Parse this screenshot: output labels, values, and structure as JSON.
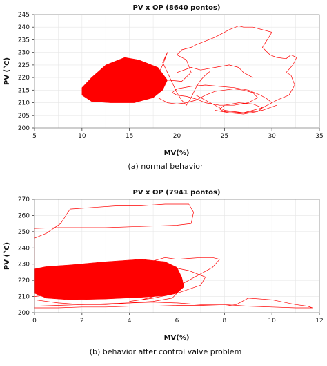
{
  "chart_data": [
    {
      "type": "scatter",
      "title": "PV x OP (8640 pontos)",
      "xlabel": "MV(%)",
      "ylabel": "PV (°C)",
      "caption": "(a) normal behavior",
      "xlim": [
        5,
        35
      ],
      "ylim": [
        200,
        245
      ],
      "xticks": [
        5,
        10,
        15,
        20,
        25,
        30,
        35
      ],
      "yticks": [
        200,
        205,
        210,
        215,
        220,
        225,
        230,
        235,
        240,
        245
      ],
      "grid": true,
      "color": "#ff0000",
      "dense_region": [
        [
          10,
          213
        ],
        [
          11,
          210.5
        ],
        [
          13,
          210
        ],
        [
          15.5,
          210
        ],
        [
          17.5,
          212
        ],
        [
          18.5,
          215
        ],
        [
          19,
          219
        ],
        [
          18,
          224
        ],
        [
          16,
          227
        ],
        [
          14.5,
          228
        ],
        [
          12.5,
          225
        ],
        [
          11,
          220
        ],
        [
          10,
          216
        ]
      ],
      "series": [
        {
          "x": [
            19,
            20.5,
            21.5,
            21,
            20,
            20.5,
            21.5,
            22,
            24,
            25.5,
            26.5,
            27,
            28,
            29,
            30,
            29.5,
            29,
            29.8,
            30.5,
            31.5,
            32,
            32.6,
            32.2,
            31.5,
            32,
            32.4,
            31.8,
            30.5,
            29,
            27,
            25,
            24,
            23.5,
            22
          ],
          "y": [
            219,
            218.5,
            222,
            227,
            229,
            231,
            232,
            233,
            236,
            239,
            240.5,
            240,
            240,
            239,
            238,
            235,
            232,
            229,
            228,
            227.5,
            229,
            228,
            225,
            222,
            221,
            217,
            213,
            211,
            208,
            206,
            207,
            209,
            210,
            213
          ]
        },
        {
          "x": [
            18,
            19,
            20,
            21,
            22,
            23,
            24,
            25,
            26,
            27,
            28,
            28.5,
            27.5,
            26,
            24.5,
            23,
            22,
            21,
            20,
            19.5,
            20,
            21.5,
            23,
            24.5,
            26,
            27.5,
            28.8,
            29.5,
            30
          ],
          "y": [
            212,
            210,
            209.5,
            210,
            211,
            213,
            214.5,
            215,
            215.5,
            215,
            214,
            212,
            210,
            209,
            209,
            210,
            211.5,
            212.5,
            213,
            214,
            215.5,
            216.5,
            217,
            216.5,
            216,
            215,
            213,
            211.5,
            210
          ]
        },
        {
          "x": [
            24,
            25.5,
            27,
            28.5,
            29,
            28,
            26.5,
            25,
            24.5,
            25,
            27,
            29,
            30.5
          ],
          "y": [
            207,
            206,
            205.5,
            206.5,
            208,
            209.5,
            210,
            209,
            207.5,
            206.5,
            206,
            207,
            209
          ]
        },
        {
          "x": [
            16,
            17,
            18,
            18.5,
            19,
            18.5,
            19,
            19.5,
            20,
            20.5,
            21,
            21.5,
            22,
            22.5,
            23,
            23.5
          ],
          "y": [
            213,
            216,
            221,
            225,
            230,
            226,
            222,
            218,
            214,
            211,
            209,
            212,
            216,
            219,
            221,
            222.5
          ]
        },
        {
          "x": [
            20,
            21.5,
            22.5,
            24,
            25.5,
            26.5,
            27,
            28
          ],
          "y": [
            222,
            224,
            223,
            224,
            225,
            224,
            222,
            220
          ]
        }
      ]
    },
    {
      "type": "scatter",
      "title": "PV x OP (7941 pontos)",
      "xlabel": "MV(%)",
      "ylabel": "PV (°C)",
      "caption": "(b) behavior after control valve problem",
      "xlim": [
        0,
        12
      ],
      "ylim": [
        200,
        270
      ],
      "xticks": [
        0,
        2,
        4,
        6,
        8,
        10,
        12
      ],
      "yticks": [
        200,
        210,
        220,
        230,
        240,
        250,
        260,
        270
      ],
      "grid": true,
      "color": "#ff0000",
      "dense_region": [
        [
          0,
          212
        ],
        [
          0.5,
          209
        ],
        [
          1.5,
          208
        ],
        [
          3,
          208.5
        ],
        [
          4.5,
          209.5
        ],
        [
          5.5,
          210.5
        ],
        [
          6,
          212
        ],
        [
          6.3,
          216
        ],
        [
          6.2,
          222
        ],
        [
          6,
          228
        ],
        [
          5.5,
          231.5
        ],
        [
          4.5,
          233
        ],
        [
          3,
          231.5
        ],
        [
          1.5,
          229.5
        ],
        [
          0.5,
          228.5
        ],
        [
          0,
          227
        ]
      ],
      "series": [
        {
          "x": [
            0,
            0,
            1,
            2,
            3,
            4,
            5,
            6,
            6.6,
            6.7,
            6.5,
            5.5,
            4.5,
            3.5,
            2.5,
            1.5,
            1.1,
            0.5,
            0,
            0
          ],
          "y": [
            203,
            252,
            252.5,
            252.5,
            252.5,
            253,
            253.5,
            254,
            255,
            262,
            267,
            267,
            266,
            266,
            265,
            264,
            255,
            249,
            246,
            228
          ]
        },
        {
          "x": [
            0,
            1,
            2,
            3,
            4,
            5,
            6,
            7,
            8,
            8.5,
            9,
            10,
            11,
            11.5,
            11.7,
            11,
            10,
            9,
            8,
            7,
            6,
            5,
            4,
            3,
            2,
            1,
            0
          ],
          "y": [
            203,
            203,
            203.5,
            203.5,
            204,
            204,
            204.5,
            204.5,
            204,
            205,
            209,
            208,
            205,
            204,
            203,
            203,
            203.5,
            204,
            205,
            205,
            206,
            206.5,
            206,
            205.5,
            205,
            204.5,
            204
          ]
        },
        {
          "x": [
            5,
            5.5,
            6,
            6.5,
            7,
            7.5,
            7.8,
            7.5,
            7,
            6.5,
            6,
            5.5,
            5,
            4.5,
            4,
            5,
            6,
            7,
            7.2,
            6.5,
            5.5
          ],
          "y": [
            232,
            234,
            233,
            233.5,
            234,
            234,
            233,
            228,
            224,
            220,
            216,
            212,
            210,
            208,
            207,
            209,
            212,
            217,
            222,
            226,
            229
          ]
        },
        {
          "x": [
            0,
            1,
            2,
            3,
            4,
            5,
            5.8,
            6,
            5.5,
            4.5,
            3,
            2,
            1,
            0
          ],
          "y": [
            208,
            206,
            205,
            205,
            206,
            207,
            209,
            212,
            214,
            216,
            217,
            215,
            212,
            210
          ]
        }
      ]
    }
  ]
}
